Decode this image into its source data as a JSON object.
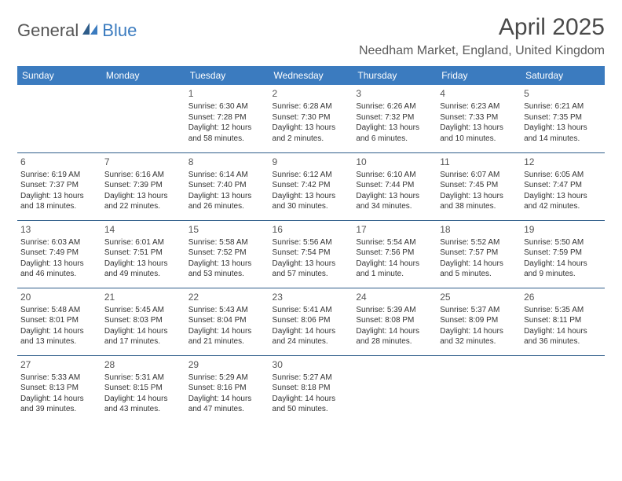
{
  "logo": {
    "text1": "General",
    "text2": "Blue"
  },
  "title": "April 2025",
  "location": "Needham Market, England, United Kingdom",
  "colors": {
    "header_bg": "#3b7bbf",
    "header_text": "#ffffff",
    "row_border": "#2f5d8a",
    "page_bg": "#ffffff",
    "text": "#333333",
    "title_text": "#4a4a4a",
    "logo_gray": "#555555",
    "logo_blue": "#3b7bbf"
  },
  "weekdays": [
    "Sunday",
    "Monday",
    "Tuesday",
    "Wednesday",
    "Thursday",
    "Friday",
    "Saturday"
  ],
  "weeks": [
    [
      null,
      null,
      {
        "n": "1",
        "sunrise": "Sunrise: 6:30 AM",
        "sunset": "Sunset: 7:28 PM",
        "daylight": "Daylight: 12 hours and 58 minutes."
      },
      {
        "n": "2",
        "sunrise": "Sunrise: 6:28 AM",
        "sunset": "Sunset: 7:30 PM",
        "daylight": "Daylight: 13 hours and 2 minutes."
      },
      {
        "n": "3",
        "sunrise": "Sunrise: 6:26 AM",
        "sunset": "Sunset: 7:32 PM",
        "daylight": "Daylight: 13 hours and 6 minutes."
      },
      {
        "n": "4",
        "sunrise": "Sunrise: 6:23 AM",
        "sunset": "Sunset: 7:33 PM",
        "daylight": "Daylight: 13 hours and 10 minutes."
      },
      {
        "n": "5",
        "sunrise": "Sunrise: 6:21 AM",
        "sunset": "Sunset: 7:35 PM",
        "daylight": "Daylight: 13 hours and 14 minutes."
      }
    ],
    [
      {
        "n": "6",
        "sunrise": "Sunrise: 6:19 AM",
        "sunset": "Sunset: 7:37 PM",
        "daylight": "Daylight: 13 hours and 18 minutes."
      },
      {
        "n": "7",
        "sunrise": "Sunrise: 6:16 AM",
        "sunset": "Sunset: 7:39 PM",
        "daylight": "Daylight: 13 hours and 22 minutes."
      },
      {
        "n": "8",
        "sunrise": "Sunrise: 6:14 AM",
        "sunset": "Sunset: 7:40 PM",
        "daylight": "Daylight: 13 hours and 26 minutes."
      },
      {
        "n": "9",
        "sunrise": "Sunrise: 6:12 AM",
        "sunset": "Sunset: 7:42 PM",
        "daylight": "Daylight: 13 hours and 30 minutes."
      },
      {
        "n": "10",
        "sunrise": "Sunrise: 6:10 AM",
        "sunset": "Sunset: 7:44 PM",
        "daylight": "Daylight: 13 hours and 34 minutes."
      },
      {
        "n": "11",
        "sunrise": "Sunrise: 6:07 AM",
        "sunset": "Sunset: 7:45 PM",
        "daylight": "Daylight: 13 hours and 38 minutes."
      },
      {
        "n": "12",
        "sunrise": "Sunrise: 6:05 AM",
        "sunset": "Sunset: 7:47 PM",
        "daylight": "Daylight: 13 hours and 42 minutes."
      }
    ],
    [
      {
        "n": "13",
        "sunrise": "Sunrise: 6:03 AM",
        "sunset": "Sunset: 7:49 PM",
        "daylight": "Daylight: 13 hours and 46 minutes."
      },
      {
        "n": "14",
        "sunrise": "Sunrise: 6:01 AM",
        "sunset": "Sunset: 7:51 PM",
        "daylight": "Daylight: 13 hours and 49 minutes."
      },
      {
        "n": "15",
        "sunrise": "Sunrise: 5:58 AM",
        "sunset": "Sunset: 7:52 PM",
        "daylight": "Daylight: 13 hours and 53 minutes."
      },
      {
        "n": "16",
        "sunrise": "Sunrise: 5:56 AM",
        "sunset": "Sunset: 7:54 PM",
        "daylight": "Daylight: 13 hours and 57 minutes."
      },
      {
        "n": "17",
        "sunrise": "Sunrise: 5:54 AM",
        "sunset": "Sunset: 7:56 PM",
        "daylight": "Daylight: 14 hours and 1 minute."
      },
      {
        "n": "18",
        "sunrise": "Sunrise: 5:52 AM",
        "sunset": "Sunset: 7:57 PM",
        "daylight": "Daylight: 14 hours and 5 minutes."
      },
      {
        "n": "19",
        "sunrise": "Sunrise: 5:50 AM",
        "sunset": "Sunset: 7:59 PM",
        "daylight": "Daylight: 14 hours and 9 minutes."
      }
    ],
    [
      {
        "n": "20",
        "sunrise": "Sunrise: 5:48 AM",
        "sunset": "Sunset: 8:01 PM",
        "daylight": "Daylight: 14 hours and 13 minutes."
      },
      {
        "n": "21",
        "sunrise": "Sunrise: 5:45 AM",
        "sunset": "Sunset: 8:03 PM",
        "daylight": "Daylight: 14 hours and 17 minutes."
      },
      {
        "n": "22",
        "sunrise": "Sunrise: 5:43 AM",
        "sunset": "Sunset: 8:04 PM",
        "daylight": "Daylight: 14 hours and 21 minutes."
      },
      {
        "n": "23",
        "sunrise": "Sunrise: 5:41 AM",
        "sunset": "Sunset: 8:06 PM",
        "daylight": "Daylight: 14 hours and 24 minutes."
      },
      {
        "n": "24",
        "sunrise": "Sunrise: 5:39 AM",
        "sunset": "Sunset: 8:08 PM",
        "daylight": "Daylight: 14 hours and 28 minutes."
      },
      {
        "n": "25",
        "sunrise": "Sunrise: 5:37 AM",
        "sunset": "Sunset: 8:09 PM",
        "daylight": "Daylight: 14 hours and 32 minutes."
      },
      {
        "n": "26",
        "sunrise": "Sunrise: 5:35 AM",
        "sunset": "Sunset: 8:11 PM",
        "daylight": "Daylight: 14 hours and 36 minutes."
      }
    ],
    [
      {
        "n": "27",
        "sunrise": "Sunrise: 5:33 AM",
        "sunset": "Sunset: 8:13 PM",
        "daylight": "Daylight: 14 hours and 39 minutes."
      },
      {
        "n": "28",
        "sunrise": "Sunrise: 5:31 AM",
        "sunset": "Sunset: 8:15 PM",
        "daylight": "Daylight: 14 hours and 43 minutes."
      },
      {
        "n": "29",
        "sunrise": "Sunrise: 5:29 AM",
        "sunset": "Sunset: 8:16 PM",
        "daylight": "Daylight: 14 hours and 47 minutes."
      },
      {
        "n": "30",
        "sunrise": "Sunrise: 5:27 AM",
        "sunset": "Sunset: 8:18 PM",
        "daylight": "Daylight: 14 hours and 50 minutes."
      },
      null,
      null,
      null
    ]
  ]
}
